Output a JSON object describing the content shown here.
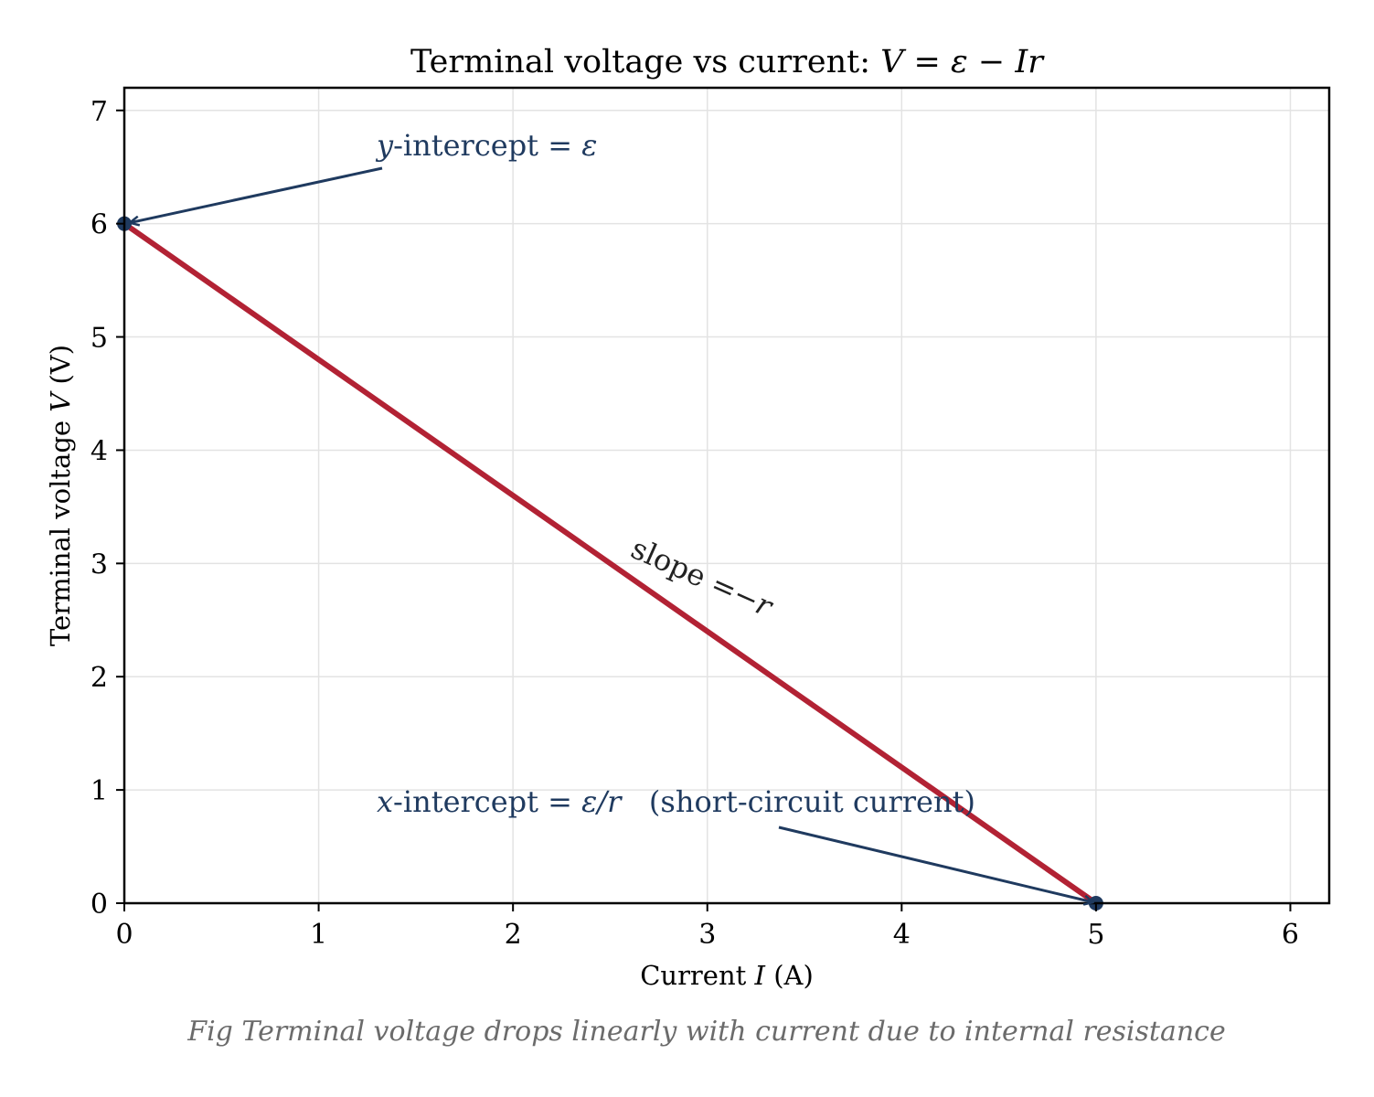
{
  "chart_data": {
    "type": "line",
    "title_text": "Terminal voltage vs current:  ",
    "title_math": "V = ε − Ir",
    "xlabel_pre": "Current ",
    "xlabel_var": "I",
    "xlabel_post": " (A)",
    "ylabel_pre": "Terminal voltage ",
    "ylabel_var": "V",
    "ylabel_post": " (V)",
    "xlim": [
      0,
      6.2
    ],
    "ylim": [
      0,
      7.2
    ],
    "xticks": [
      0,
      1,
      2,
      3,
      4,
      5,
      6
    ],
    "yticks": [
      0,
      1,
      2,
      3,
      4,
      5,
      6,
      7
    ],
    "grid": true,
    "series": [
      {
        "x": [
          0,
          5
        ],
        "y": [
          6,
          0
        ]
      }
    ],
    "points": [
      {
        "x": 0,
        "y": 6
      },
      {
        "x": 5,
        "y": 0
      }
    ],
    "annotations": {
      "y_intercept": {
        "var": "y",
        "text": "-intercept = ",
        "math": "ε",
        "x": 0,
        "y": 6
      },
      "x_intercept": {
        "var": "x",
        "text": "-intercept = ",
        "math": "ε/r",
        "extra": "   (short-circuit current)",
        "x": 5,
        "y": 0
      },
      "slope": {
        "text": "slope ",
        "math": "=−r"
      }
    },
    "caption": "Fig  Terminal voltage drops linearly with current due to internal resistance"
  },
  "colors": {
    "line": "#b22234",
    "annotation": "#1f3a5f",
    "grid": "#e3e3e3",
    "slope_text": "#222222",
    "caption": "#6b6b6b"
  }
}
